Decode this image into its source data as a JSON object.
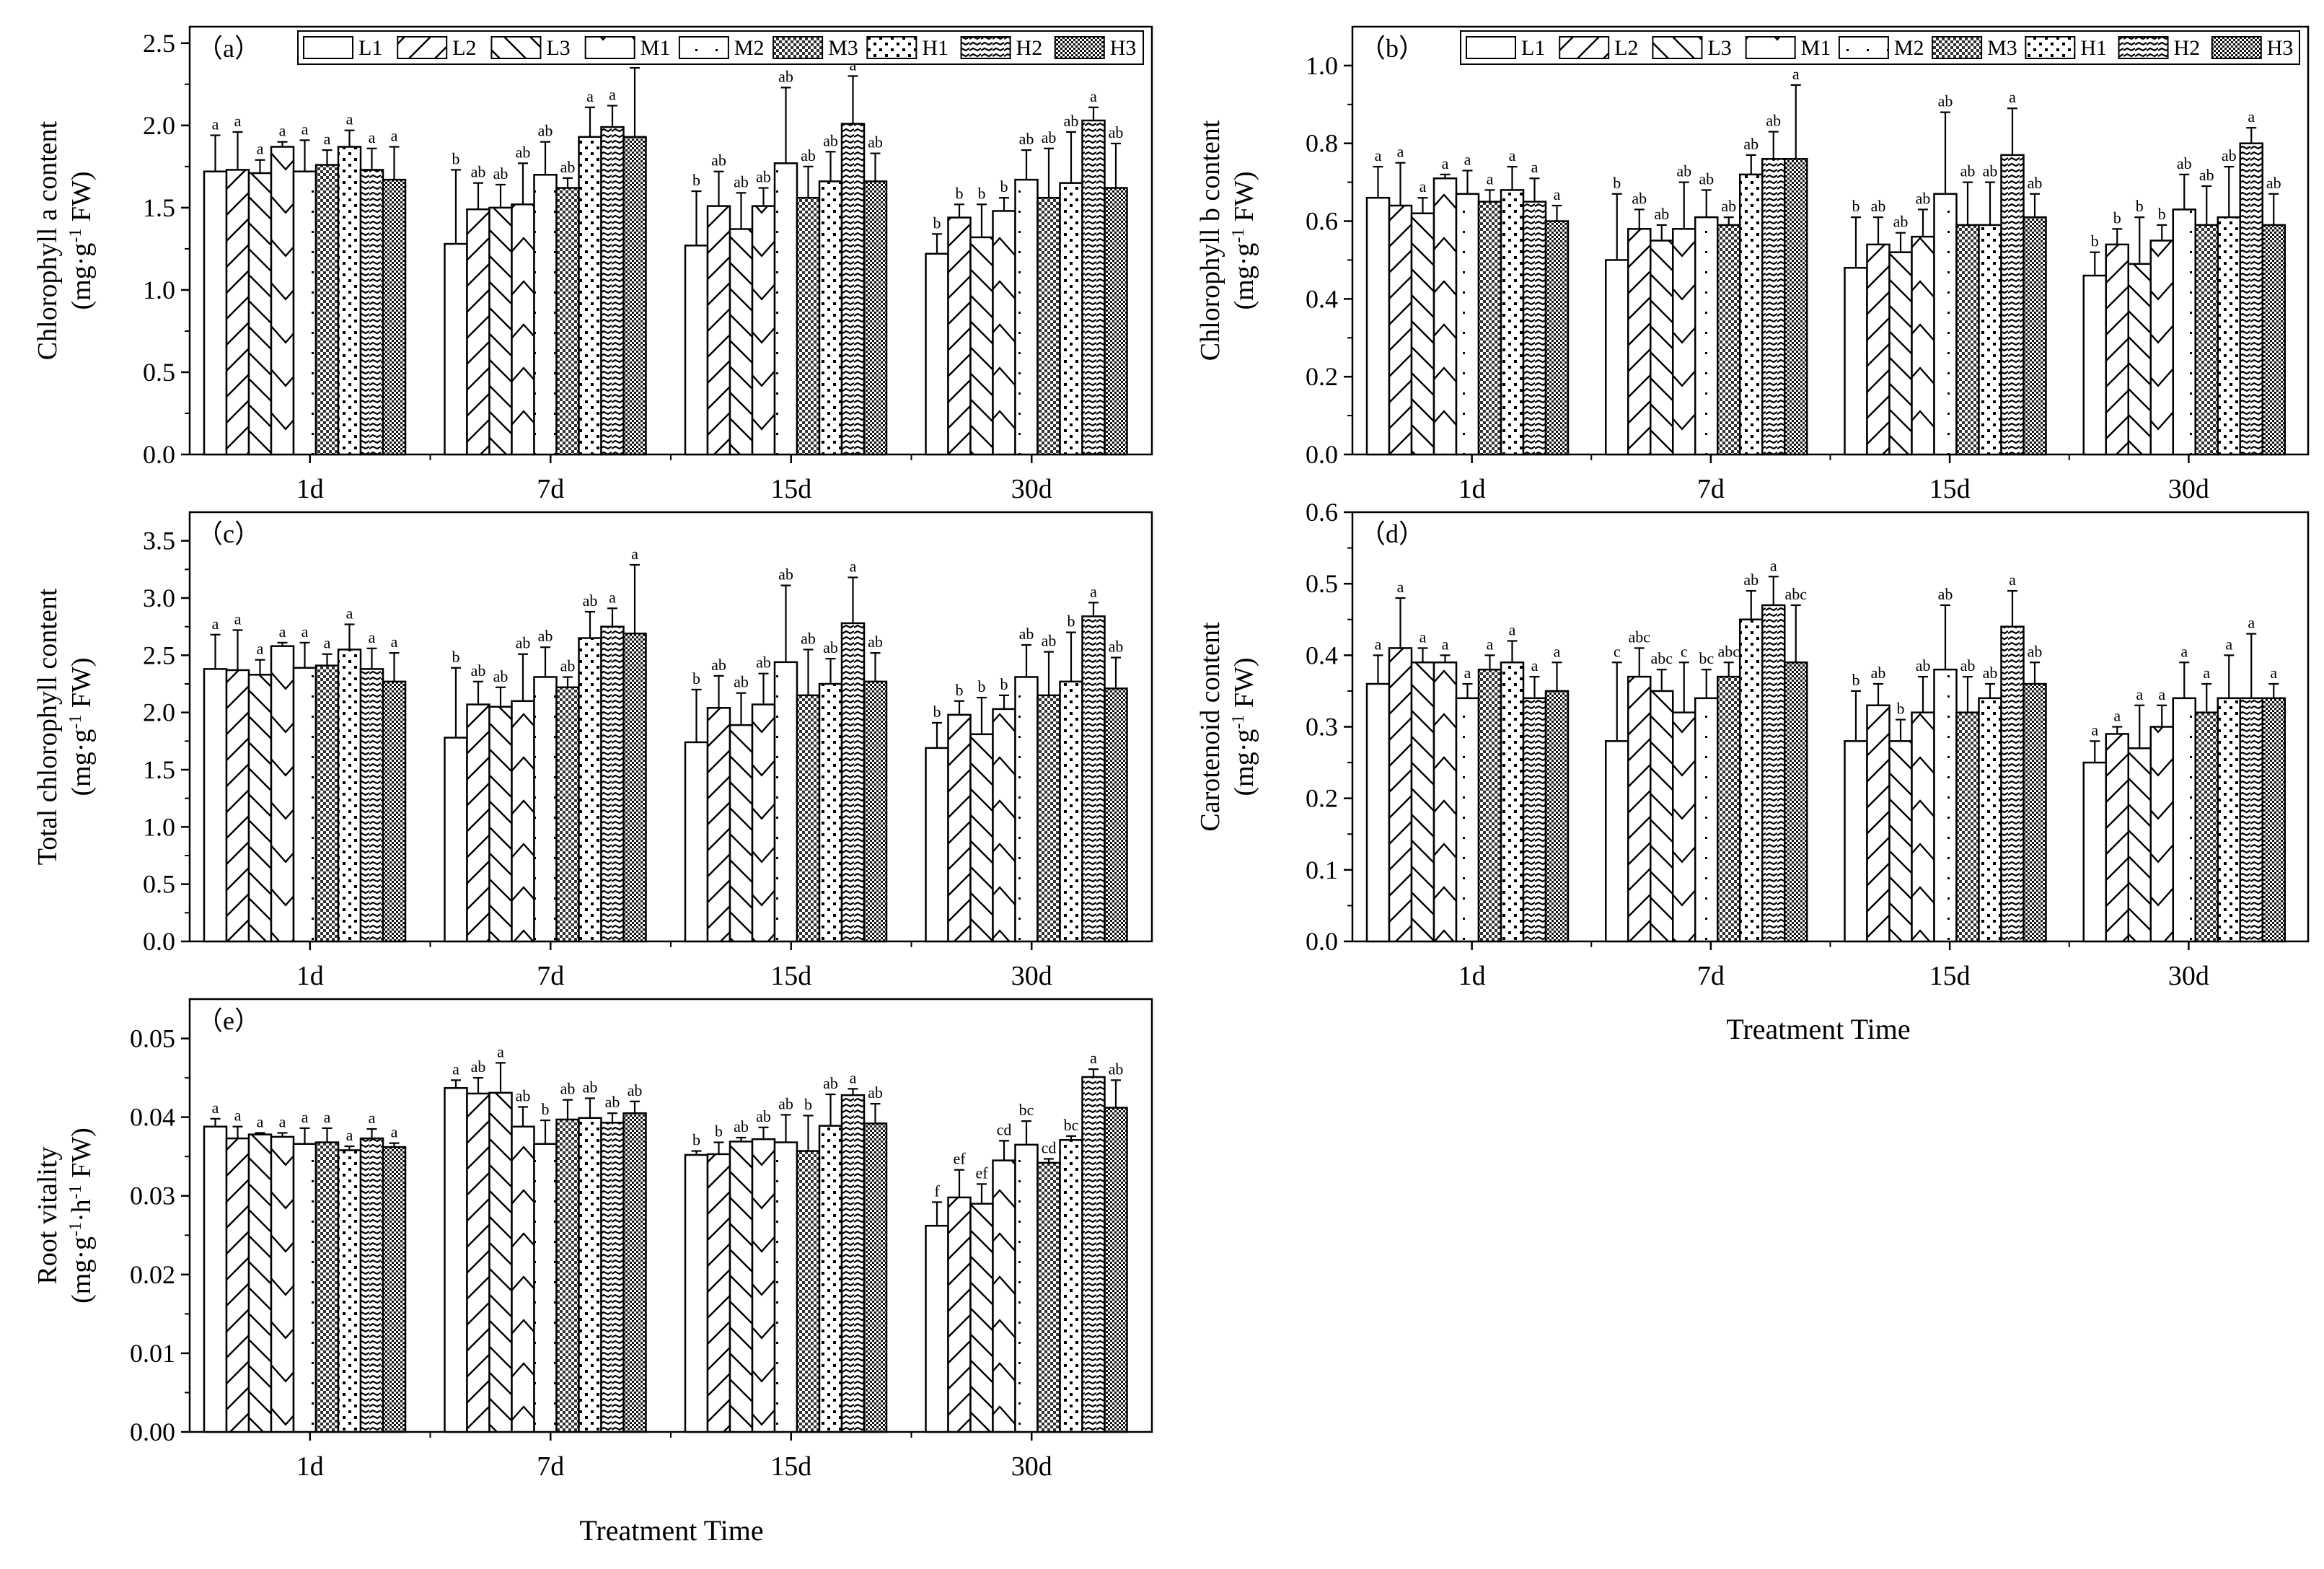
{
  "figure": {
    "common_xlabel": "Treatment Time",
    "treatments": [
      "L1",
      "L2",
      "L3",
      "M1",
      "M2",
      "M3",
      "H1",
      "H2",
      "H3"
    ],
    "times": [
      "1d",
      "7d",
      "15d",
      "30d"
    ]
  },
  "chart_data": [
    {
      "id": "a",
      "panel_label": "（a）",
      "type": "bar",
      "ylabel": "Chlorophyll a content",
      "yunit_pre": "(mg·g",
      "yunit_sup": "-1",
      "yunit_post": " FW)",
      "ylim": [
        0,
        2.6
      ],
      "yticks": [
        0.0,
        0.5,
        1.0,
        1.5,
        2.0,
        2.5
      ],
      "ydec": 1,
      "categories": [
        "1d",
        "7d",
        "15d",
        "30d"
      ],
      "series": [
        {
          "name": "L1",
          "values": [
            1.72,
            1.28,
            1.27,
            1.22
          ],
          "errors": [
            0.22,
            0.45,
            0.33,
            0.12
          ],
          "letters": [
            "a",
            "b",
            "b",
            "b"
          ]
        },
        {
          "name": "L2",
          "values": [
            1.73,
            1.49,
            1.51,
            1.44
          ],
          "errors": [
            0.23,
            0.16,
            0.21,
            0.08
          ],
          "letters": [
            "a",
            "ab",
            "ab",
            "b"
          ]
        },
        {
          "name": "L3",
          "values": [
            1.71,
            1.5,
            1.37,
            1.32
          ],
          "errors": [
            0.08,
            0.14,
            0.22,
            0.2
          ],
          "letters": [
            "a",
            "ab",
            "ab",
            "b"
          ]
        },
        {
          "name": "M1",
          "values": [
            1.87,
            1.52,
            1.51,
            1.48
          ],
          "errors": [
            0.03,
            0.25,
            0.11,
            0.08
          ],
          "letters": [
            "a",
            "ab",
            "ab",
            "b"
          ]
        },
        {
          "name": "M2",
          "values": [
            1.72,
            1.7,
            1.77,
            1.67
          ],
          "errors": [
            0.19,
            0.2,
            0.46,
            0.18
          ],
          "letters": [
            "a",
            "ab",
            "ab",
            "ab"
          ]
        },
        {
          "name": "M3",
          "values": [
            1.76,
            1.62,
            1.56,
            1.56
          ],
          "errors": [
            0.09,
            0.06,
            0.19,
            0.3
          ],
          "letters": [
            "a",
            "ab",
            "ab",
            "ab"
          ]
        },
        {
          "name": "H1",
          "values": [
            1.87,
            1.93,
            1.66,
            1.65
          ],
          "errors": [
            0.1,
            0.18,
            0.18,
            0.31
          ],
          "letters": [
            "a",
            "a",
            "ab",
            "ab"
          ]
        },
        {
          "name": "H2",
          "values": [
            1.73,
            1.99,
            2.01,
            2.03
          ],
          "errors": [
            0.13,
            0.13,
            0.29,
            0.08
          ],
          "letters": [
            "a",
            "a",
            "a",
            "a"
          ]
        },
        {
          "name": "H3",
          "values": [
            1.67,
            1.93,
            1.66,
            1.62
          ],
          "errors": [
            0.2,
            0.42,
            0.17,
            0.27
          ],
          "letters": [
            "a",
            "a",
            "ab",
            "ab"
          ]
        }
      ]
    },
    {
      "id": "b",
      "panel_label": "（b）",
      "type": "bar",
      "ylabel": "Chlorophyll b content",
      "yunit_pre": "(mg·g",
      "yunit_sup": "-1",
      "yunit_post": " FW)",
      "ylim": [
        0,
        1.1
      ],
      "yticks": [
        0.0,
        0.2,
        0.4,
        0.6,
        0.8,
        1.0
      ],
      "ydec": 1,
      "categories": [
        "1d",
        "7d",
        "15d",
        "30d"
      ],
      "series": [
        {
          "name": "L1",
          "values": [
            0.66,
            0.5,
            0.48,
            0.46
          ],
          "errors": [
            0.08,
            0.17,
            0.13,
            0.06
          ],
          "letters": [
            "a",
            "b",
            "b",
            "b"
          ]
        },
        {
          "name": "L2",
          "values": [
            0.64,
            0.58,
            0.54,
            0.54
          ],
          "errors": [
            0.11,
            0.05,
            0.07,
            0.04
          ],
          "letters": [
            "a",
            "ab",
            "ab",
            "b"
          ]
        },
        {
          "name": "L3",
          "values": [
            0.62,
            0.55,
            0.52,
            0.49
          ],
          "errors": [
            0.04,
            0.04,
            0.05,
            0.12
          ],
          "letters": [
            "a",
            "ab",
            "ab",
            "b"
          ]
        },
        {
          "name": "M1",
          "values": [
            0.71,
            0.58,
            0.56,
            0.55
          ],
          "errors": [
            0.01,
            0.12,
            0.07,
            0.04
          ],
          "letters": [
            "a",
            "ab",
            "ab",
            "b"
          ]
        },
        {
          "name": "M2",
          "values": [
            0.67,
            0.61,
            0.67,
            0.63
          ],
          "errors": [
            0.06,
            0.07,
            0.21,
            0.09
          ],
          "letters": [
            "a",
            "ab",
            "ab",
            "ab"
          ]
        },
        {
          "name": "M3",
          "values": [
            0.65,
            0.59,
            0.59,
            0.59
          ],
          "errors": [
            0.03,
            0.02,
            0.11,
            0.1
          ],
          "letters": [
            "a",
            "ab",
            "ab",
            "ab"
          ]
        },
        {
          "name": "H1",
          "values": [
            0.68,
            0.72,
            0.59,
            0.61
          ],
          "errors": [
            0.06,
            0.05,
            0.11,
            0.13
          ],
          "letters": [
            "a",
            "ab",
            "ab",
            "ab"
          ]
        },
        {
          "name": "H2",
          "values": [
            0.65,
            0.76,
            0.77,
            0.8
          ],
          "errors": [
            0.06,
            0.07,
            0.12,
            0.04
          ],
          "letters": [
            "a",
            "ab",
            "a",
            "a"
          ]
        },
        {
          "name": "H3",
          "values": [
            0.6,
            0.76,
            0.61,
            0.59
          ],
          "errors": [
            0.04,
            0.19,
            0.06,
            0.08
          ],
          "letters": [
            "a",
            "a",
            "ab",
            "ab"
          ]
        }
      ]
    },
    {
      "id": "c",
      "panel_label": "（c）",
      "type": "bar",
      "ylabel": "Total chlorophyll content",
      "yunit_pre": "(mg·g",
      "yunit_sup": "-1",
      "yunit_post": " FW)",
      "ylim": [
        0,
        3.75
      ],
      "yticks": [
        0.0,
        0.5,
        1.0,
        1.5,
        2.0,
        2.5,
        3.0,
        3.5
      ],
      "ydec": 1,
      "categories": [
        "1d",
        "7d",
        "15d",
        "30d"
      ],
      "series": [
        {
          "name": "L1",
          "values": [
            2.38,
            1.78,
            1.74,
            1.69
          ],
          "errors": [
            0.3,
            0.61,
            0.46,
            0.22
          ],
          "letters": [
            "a",
            "b",
            "b",
            "b"
          ]
        },
        {
          "name": "L2",
          "values": [
            2.37,
            2.07,
            2.04,
            1.98
          ],
          "errors": [
            0.35,
            0.2,
            0.28,
            0.12
          ],
          "letters": [
            "a",
            "ab",
            "ab",
            "b"
          ]
        },
        {
          "name": "L3",
          "values": [
            2.33,
            2.05,
            1.89,
            1.81
          ],
          "errors": [
            0.13,
            0.17,
            0.28,
            0.32
          ],
          "letters": [
            "a",
            "ab",
            "ab",
            "b"
          ]
        },
        {
          "name": "M1",
          "values": [
            2.58,
            2.1,
            2.07,
            2.03
          ],
          "errors": [
            0.03,
            0.41,
            0.27,
            0.12
          ],
          "letters": [
            "a",
            "ab",
            "ab",
            "b"
          ]
        },
        {
          "name": "M2",
          "values": [
            2.39,
            2.31,
            2.44,
            2.31
          ],
          "errors": [
            0.22,
            0.26,
            0.67,
            0.28
          ],
          "letters": [
            "a",
            "ab",
            "ab",
            "ab"
          ]
        },
        {
          "name": "M3",
          "values": [
            2.41,
            2.22,
            2.15,
            2.15
          ],
          "errors": [
            0.1,
            0.09,
            0.4,
            0.38
          ],
          "letters": [
            "a",
            "ab",
            "ab",
            "ab"
          ]
        },
        {
          "name": "H1",
          "values": [
            2.55,
            2.65,
            2.25,
            2.27
          ],
          "errors": [
            0.22,
            0.23,
            0.22,
            0.43
          ],
          "letters": [
            "a",
            "ab",
            "ab",
            "b"
          ]
        },
        {
          "name": "H2",
          "values": [
            2.38,
            2.75,
            2.78,
            2.84
          ],
          "errors": [
            0.18,
            0.16,
            0.4,
            0.12
          ],
          "letters": [
            "a",
            "a",
            "a",
            "a"
          ]
        },
        {
          "name": "H3",
          "values": [
            2.27,
            2.69,
            2.27,
            2.21
          ],
          "errors": [
            0.25,
            0.6,
            0.25,
            0.27
          ],
          "letters": [
            "a",
            "a",
            "ab",
            "ab"
          ]
        }
      ]
    },
    {
      "id": "d",
      "panel_label": "（d）",
      "type": "bar",
      "ylabel": "Carotenoid content",
      "yunit_pre": "(mg·g",
      "yunit_sup": "-1",
      "yunit_post": " FW)",
      "ylim": [
        0,
        0.6
      ],
      "yticks": [
        0.0,
        0.1,
        0.2,
        0.3,
        0.4,
        0.5,
        0.6
      ],
      "ydec": 1,
      "categories": [
        "1d",
        "7d",
        "15d",
        "30d"
      ],
      "series": [
        {
          "name": "L1",
          "values": [
            0.36,
            0.28,
            0.28,
            0.25
          ],
          "errors": [
            0.04,
            0.11,
            0.07,
            0.03
          ],
          "letters": [
            "a",
            "c",
            "b",
            "a"
          ]
        },
        {
          "name": "L2",
          "values": [
            0.41,
            0.37,
            0.33,
            0.29
          ],
          "errors": [
            0.07,
            0.04,
            0.03,
            0.01
          ],
          "letters": [
            "a",
            "abc",
            "ab",
            "a"
          ]
        },
        {
          "name": "L3",
          "values": [
            0.39,
            0.35,
            0.28,
            0.27
          ],
          "errors": [
            0.02,
            0.03,
            0.03,
            0.06
          ],
          "letters": [
            "a",
            "abc",
            "b",
            "a"
          ]
        },
        {
          "name": "M1",
          "values": [
            0.39,
            0.32,
            0.32,
            0.3
          ],
          "errors": [
            0.01,
            0.07,
            0.05,
            0.03
          ],
          "letters": [
            "a",
            "c",
            "ab",
            "a"
          ]
        },
        {
          "name": "M2",
          "values": [
            0.34,
            0.34,
            0.38,
            0.34
          ],
          "errors": [
            0.02,
            0.04,
            0.09,
            0.05
          ],
          "letters": [
            "a",
            "bc",
            "ab",
            "a"
          ]
        },
        {
          "name": "M3",
          "values": [
            0.38,
            0.37,
            0.32,
            0.32
          ],
          "errors": [
            0.02,
            0.02,
            0.05,
            0.04
          ],
          "letters": [
            "a",
            "abc",
            "ab",
            "a"
          ]
        },
        {
          "name": "H1",
          "values": [
            0.39,
            0.45,
            0.34,
            0.34
          ],
          "errors": [
            0.03,
            0.04,
            0.02,
            0.06
          ],
          "letters": [
            "a",
            "ab",
            "ab",
            "a"
          ]
        },
        {
          "name": "H2",
          "values": [
            0.34,
            0.47,
            0.44,
            0.34
          ],
          "errors": [
            0.03,
            0.04,
            0.05,
            0.09
          ],
          "letters": [
            "a",
            "a",
            "a",
            "a"
          ]
        },
        {
          "name": "H3",
          "values": [
            0.35,
            0.39,
            0.36,
            0.34
          ],
          "errors": [
            0.04,
            0.08,
            0.03,
            0.02
          ],
          "letters": [
            "a",
            "abc",
            "ab",
            "a"
          ]
        }
      ]
    },
    {
      "id": "e",
      "panel_label": "（e）",
      "type": "bar",
      "ylabel": "Root vitality",
      "yunit_pre": "(mg·g",
      "yunit_sup": "-1",
      "yunit_mid": "·h",
      "yunit_sup2": "-1",
      "yunit_post": " FW)",
      "ylim": [
        0,
        0.055
      ],
      "yticks": [
        0.0,
        0.01,
        0.02,
        0.03,
        0.04,
        0.05
      ],
      "ydec": 2,
      "categories": [
        "1d",
        "7d",
        "15d",
        "30d"
      ],
      "series": [
        {
          "name": "L1",
          "values": [
            0.0388,
            0.0437,
            0.0352,
            0.0262
          ],
          "errors": [
            0.001,
            0.001,
            0.0005,
            0.003
          ],
          "letters": [
            "a",
            "a",
            "b",
            "f"
          ]
        },
        {
          "name": "L2",
          "values": [
            0.0373,
            0.043,
            0.0353,
            0.0298
          ],
          "errors": [
            0.0015,
            0.002,
            0.0015,
            0.0035
          ],
          "letters": [
            "a",
            "ab",
            "b",
            "ef"
          ]
        },
        {
          "name": "L3",
          "values": [
            0.0378,
            0.0431,
            0.0369,
            0.029
          ],
          "errors": [
            0.0002,
            0.0038,
            0.0005,
            0.0025
          ],
          "letters": [
            "a",
            "a",
            "ab",
            "ef"
          ]
        },
        {
          "name": "M1",
          "values": [
            0.0375,
            0.0388,
            0.0372,
            0.0345
          ],
          "errors": [
            0.0005,
            0.0025,
            0.0015,
            0.0025
          ],
          "letters": [
            "a",
            "ab",
            "ab",
            "cd"
          ]
        },
        {
          "name": "M2",
          "values": [
            0.0366,
            0.0366,
            0.0368,
            0.0365
          ],
          "errors": [
            0.002,
            0.003,
            0.0035,
            0.003
          ],
          "letters": [
            "a",
            "b",
            "ab",
            "bc"
          ]
        },
        {
          "name": "M3",
          "values": [
            0.0368,
            0.0397,
            0.0357,
            0.0342
          ],
          "errors": [
            0.0018,
            0.0025,
            0.0045,
            0.0005
          ],
          "letters": [
            "a",
            "ab",
            "b",
            "cd"
          ]
        },
        {
          "name": "H1",
          "values": [
            0.0358,
            0.0399,
            0.0389,
            0.0371
          ],
          "errors": [
            0.0005,
            0.0025,
            0.004,
            0.0005
          ],
          "letters": [
            "a",
            "ab",
            "ab",
            "bc"
          ]
        },
        {
          "name": "H2",
          "values": [
            0.0373,
            0.0393,
            0.0428,
            0.0451
          ],
          "errors": [
            0.0012,
            0.0012,
            0.0008,
            0.001
          ],
          "letters": [
            "a",
            "ab",
            "a",
            "a"
          ]
        },
        {
          "name": "H3",
          "values": [
            0.0362,
            0.0405,
            0.0392,
            0.0412
          ],
          "errors": [
            0.0005,
            0.0015,
            0.0025,
            0.0035
          ],
          "letters": [
            "a",
            "ab",
            "ab",
            "ab"
          ]
        }
      ]
    }
  ]
}
